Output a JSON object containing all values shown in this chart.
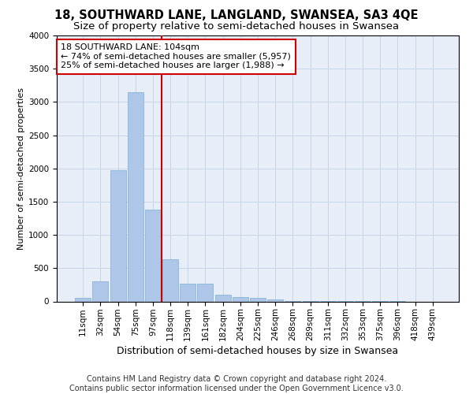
{
  "title": "18, SOUTHWARD LANE, LANGLAND, SWANSEA, SA3 4QE",
  "subtitle": "Size of property relative to semi-detached houses in Swansea",
  "xlabel": "Distribution of semi-detached houses by size in Swansea",
  "ylabel": "Number of semi-detached properties",
  "footer_line1": "Contains HM Land Registry data © Crown copyright and database right 2024.",
  "footer_line2": "Contains public sector information licensed under the Open Government Licence v3.0.",
  "categories": [
    "11sqm",
    "32sqm",
    "54sqm",
    "75sqm",
    "97sqm",
    "118sqm",
    "139sqm",
    "161sqm",
    "182sqm",
    "204sqm",
    "225sqm",
    "246sqm",
    "268sqm",
    "289sqm",
    "311sqm",
    "332sqm",
    "353sqm",
    "375sqm",
    "396sqm",
    "418sqm",
    "439sqm"
  ],
  "values": [
    50,
    300,
    1970,
    3150,
    1380,
    630,
    270,
    270,
    100,
    65,
    50,
    30,
    10,
    5,
    3,
    2,
    1,
    1,
    1,
    0,
    0
  ],
  "bar_color": "#aec6e8",
  "bar_edge_color": "#7aafd4",
  "grid_color": "#c8d4e8",
  "background_color": "#e8eef8",
  "vline_index": 4.5,
  "vline_color": "#cc0000",
  "annotation_line1": "18 SOUTHWARD LANE: 104sqm",
  "annotation_line2": "← 74% of semi-detached houses are smaller (5,957)",
  "annotation_line3": "25% of semi-detached houses are larger (1,988) →",
  "annotation_box_color": "#cc0000",
  "ylim": [
    0,
    4000
  ],
  "yticks": [
    0,
    500,
    1000,
    1500,
    2000,
    2500,
    3000,
    3500,
    4000
  ],
  "title_fontsize": 10.5,
  "subtitle_fontsize": 9.5,
  "xlabel_fontsize": 9,
  "ylabel_fontsize": 8,
  "tick_fontsize": 7.5,
  "annotation_fontsize": 8
}
